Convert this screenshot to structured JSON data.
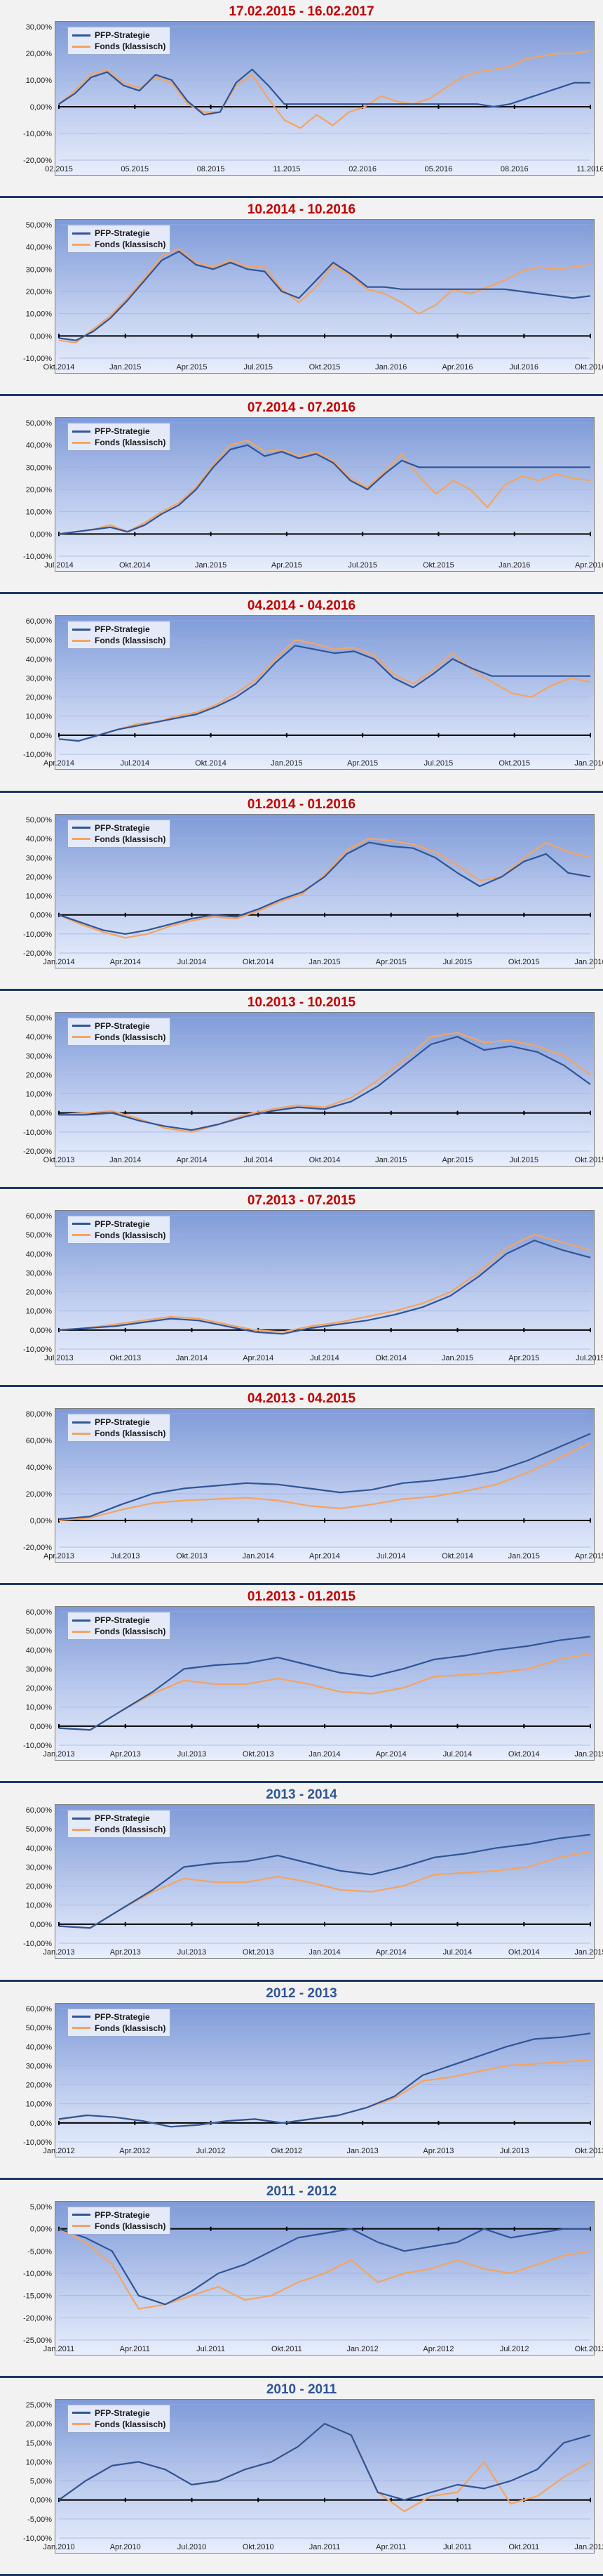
{
  "colors": {
    "strategy": "#2f5597",
    "fund": "#f4a460",
    "title_red": "#c00000",
    "title_blue": "#2f5597"
  },
  "legend": {
    "strategy": "PFP-Strategie",
    "fund": "Fonds (klassisch)"
  },
  "chart_data": [
    {
      "type": "line",
      "title": "17.02.2015 - 16.02.2017",
      "title_color": "red",
      "ylim": [
        -20,
        30
      ],
      "yticks": [
        "-20,00%",
        "-10,00%",
        "0,00%",
        "10,00%",
        "20,00%",
        "30,00%"
      ],
      "xticks": [
        "02.2015",
        "05.2015",
        "08.2015",
        "11.2015",
        "02.2016",
        "05.2016",
        "08.2016",
        "11.2016"
      ],
      "series": [
        {
          "name": "PFP-Strategie",
          "values": [
            1,
            5,
            11,
            13,
            8,
            6,
            12,
            10,
            2,
            -3,
            -2,
            9,
            14,
            8,
            1,
            1,
            1,
            1,
            1,
            1,
            1,
            1,
            1,
            1,
            1,
            1,
            1,
            0,
            1,
            3,
            5,
            7,
            9,
            9
          ]
        },
        {
          "name": "Fonds (klassisch)",
          "values": [
            1,
            6,
            12,
            14,
            9,
            7,
            11,
            9,
            1,
            -2,
            -2,
            8,
            12,
            3,
            -5,
            -8,
            -3,
            -7,
            -2,
            0,
            4,
            2,
            1,
            3,
            7,
            11,
            13,
            14,
            15,
            18,
            19,
            20,
            20,
            21
          ]
        }
      ]
    },
    {
      "type": "line",
      "title": "10.2014 - 10.2016",
      "title_color": "red",
      "ylim": [
        -10,
        50
      ],
      "yticks": [
        "-10,00%",
        "0,00%",
        "10,00%",
        "20,00%",
        "30,00%",
        "40,00%",
        "50,00%"
      ],
      "xticks": [
        "Okt.2014",
        "Jan.2015",
        "Apr.2015",
        "Jul.2015",
        "Okt.2015",
        "Jan.2016",
        "Apr.2016",
        "Jul.2016",
        "Okt.2016"
      ],
      "series": [
        {
          "name": "PFP-Strategie",
          "values": [
            -1,
            -2,
            2,
            8,
            16,
            25,
            34,
            38,
            32,
            30,
            33,
            30,
            29,
            20,
            17,
            25,
            33,
            28,
            22,
            22,
            21,
            21,
            21,
            21,
            21,
            21,
            21,
            20,
            19,
            18,
            17,
            18
          ]
        },
        {
          "name": "Fonds (klassisch)",
          "values": [
            -2,
            -3,
            3,
            9,
            17,
            26,
            36,
            39,
            33,
            31,
            34,
            31,
            31,
            21,
            15,
            22,
            32,
            27,
            21,
            19,
            15,
            10,
            14,
            21,
            19,
            22,
            25,
            29,
            31,
            30,
            31,
            32
          ]
        }
      ]
    },
    {
      "type": "line",
      "title": "07.2014 - 07.2016",
      "title_color": "red",
      "ylim": [
        -10,
        50
      ],
      "yticks": [
        "-10,00%",
        "0,00%",
        "10,00%",
        "20,00%",
        "30,00%",
        "40,00%",
        "50,00%"
      ],
      "xticks": [
        "Jul.2014",
        "Okt.2014",
        "Jan.2015",
        "Apr.2015",
        "Jul.2015",
        "Okt.2015",
        "Jan.2016",
        "Apr.2016"
      ],
      "series": [
        {
          "name": "PFP-Strategie",
          "values": [
            0,
            1,
            2,
            3,
            1,
            4,
            9,
            13,
            20,
            30,
            38,
            40,
            35,
            37,
            34,
            36,
            32,
            24,
            20,
            27,
            33,
            30,
            30,
            30,
            30,
            30,
            30,
            30,
            30,
            30,
            30,
            30
          ]
        },
        {
          "name": "Fonds (klassisch)",
          "values": [
            0,
            1,
            2,
            4,
            1,
            5,
            10,
            14,
            21,
            31,
            40,
            42,
            37,
            38,
            35,
            37,
            33,
            25,
            21,
            28,
            36,
            26,
            18,
            24,
            20,
            12,
            22,
            26,
            24,
            27,
            25,
            24
          ]
        }
      ]
    },
    {
      "type": "line",
      "title": "04.2014 - 04.2016",
      "title_color": "red",
      "ylim": [
        -10,
        60
      ],
      "yticks": [
        "-10,00%",
        "0,00%",
        "10,00%",
        "20,00%",
        "30,00%",
        "40,00%",
        "50,00%",
        "60,00%"
      ],
      "xticks": [
        "Apr.2014",
        "Jul.2014",
        "Okt.2014",
        "Jan.2015",
        "Apr.2015",
        "Jul.2015",
        "Okt.2015",
        "Jan.2016"
      ],
      "series": [
        {
          "name": "PFP-Strategie",
          "values": [
            -2,
            -3,
            0,
            3,
            5,
            7,
            9,
            11,
            15,
            20,
            27,
            38,
            47,
            45,
            43,
            44,
            40,
            30,
            25,
            32,
            40,
            35,
            31,
            31,
            31,
            31,
            31,
            31
          ]
        },
        {
          "name": "Fonds (klassisch)",
          "values": [
            -2,
            -3,
            0,
            3,
            6,
            7,
            10,
            12,
            16,
            22,
            29,
            40,
            50,
            48,
            45,
            46,
            42,
            32,
            27,
            34,
            43,
            34,
            28,
            22,
            20,
            26,
            30,
            28
          ]
        }
      ]
    },
    {
      "type": "line",
      "title": "01.2014 - 01.2016",
      "title_color": "red",
      "ylim": [
        -20,
        50
      ],
      "yticks": [
        "-20,00%",
        "-10,00%",
        "0,00%",
        "10,00%",
        "20,00%",
        "30,00%",
        "40,00%",
        "50,00%"
      ],
      "xticks": [
        "Jan.2014",
        "Apr.2014",
        "Jul.2014",
        "Okt.2014",
        "Jan.2015",
        "Apr.2015",
        "Jul.2015",
        "Okt.2015",
        "Jan.2016"
      ],
      "series": [
        {
          "name": "PFP-Strategie",
          "values": [
            0,
            -4,
            -8,
            -10,
            -8,
            -5,
            -2,
            0,
            -1,
            3,
            8,
            12,
            20,
            32,
            38,
            36,
            35,
            30,
            22,
            15,
            20,
            28,
            32,
            22,
            20
          ]
        },
        {
          "name": "Fonds (klassisch)",
          "values": [
            0,
            -5,
            -9,
            -12,
            -10,
            -6,
            -3,
            -1,
            -2,
            2,
            7,
            11,
            21,
            34,
            40,
            39,
            37,
            33,
            26,
            18,
            20,
            30,
            38,
            33,
            30
          ]
        }
      ]
    },
    {
      "type": "line",
      "title": "10.2013 - 10.2015",
      "title_color": "red",
      "ylim": [
        -20,
        50
      ],
      "yticks": [
        "-20,00%",
        "-10,00%",
        "0,00%",
        "10,00%",
        "20,00%",
        "30,00%",
        "40,00%",
        "50,00%"
      ],
      "xticks": [
        "Okt.2013",
        "Jan.2014",
        "Apr.2014",
        "Jul.2014",
        "Okt.2014",
        "Jan.2015",
        "Apr.2015",
        "Jul.2015",
        "Okt.2015"
      ],
      "series": [
        {
          "name": "PFP-Strategie",
          "values": [
            -1,
            -1,
            0,
            -4,
            -7,
            -9,
            -6,
            -2,
            1,
            3,
            2,
            6,
            14,
            25,
            36,
            40,
            33,
            35,
            32,
            25,
            15
          ]
        },
        {
          "name": "Fonds (klassisch)",
          "values": [
            -1,
            0,
            1,
            -3,
            -8,
            -10,
            -6,
            -1,
            2,
            4,
            3,
            8,
            17,
            28,
            40,
            42,
            37,
            38,
            35,
            30,
            20
          ]
        }
      ]
    },
    {
      "type": "line",
      "title": "07.2013 - 07.2015",
      "title_color": "red",
      "ylim": [
        -10,
        60
      ],
      "yticks": [
        "-10,00%",
        "0,00%",
        "10,00%",
        "20,00%",
        "30,00%",
        "40,00%",
        "50,00%",
        "60,00%"
      ],
      "xticks": [
        "Jul.2013",
        "Okt.2013",
        "Jan.2014",
        "Apr.2014",
        "Jul.2014",
        "Okt.2014",
        "Jan.2015",
        "Apr.2015",
        "Jul.2015"
      ],
      "series": [
        {
          "name": "PFP-Strategie",
          "values": [
            0,
            1,
            2,
            4,
            6,
            5,
            2,
            -1,
            -2,
            1,
            3,
            5,
            8,
            12,
            18,
            28,
            40,
            47,
            42,
            38
          ]
        },
        {
          "name": "Fonds (klassisch)",
          "values": [
            0,
            1,
            3,
            5,
            7,
            6,
            3,
            0,
            -1,
            2,
            4,
            7,
            10,
            14,
            20,
            30,
            43,
            50,
            46,
            42
          ]
        }
      ]
    },
    {
      "type": "line",
      "title": "04.2013 - 04.2015",
      "title_color": "red",
      "ylim": [
        -20,
        80
      ],
      "yticks": [
        "-20,00%",
        "0,00%",
        "20,00%",
        "40,00%",
        "60,00%",
        "80,00%"
      ],
      "xticks": [
        "Apr.2013",
        "Jul.2013",
        "Okt.2013",
        "Jan.2014",
        "Apr.2014",
        "Jul.2014",
        "Okt.2014",
        "Jan.2015",
        "Apr.2015"
      ],
      "series": [
        {
          "name": "PFP-Strategie",
          "values": [
            1,
            3,
            12,
            20,
            24,
            26,
            28,
            27,
            24,
            21,
            23,
            28,
            30,
            33,
            37,
            45,
            55,
            65
          ]
        },
        {
          "name": "Fonds (klassisch)",
          "values": [
            0,
            2,
            8,
            13,
            15,
            16,
            17,
            15,
            11,
            9,
            12,
            16,
            18,
            22,
            27,
            36,
            47,
            58
          ]
        }
      ]
    },
    {
      "type": "line",
      "title": "01.2013 - 01.2015",
      "title_color": "red",
      "ylim": [
        -10,
        60
      ],
      "yticks": [
        "-10,00%",
        "0,00%",
        "10,00%",
        "20,00%",
        "30,00%",
        "40,00%",
        "50,00%",
        "60,00%"
      ],
      "xticks": [
        "Jan.2013",
        "Apr.2013",
        "Jul.2013",
        "Okt.2013",
        "Jan.2014",
        "Apr.2014",
        "Jul.2014",
        "Okt.2014",
        "Jan.2015"
      ],
      "series": [
        {
          "name": "PFP-Strategie",
          "values": [
            -1,
            -2,
            8,
            18,
            30,
            32,
            33,
            36,
            32,
            28,
            26,
            30,
            35,
            37,
            40,
            42,
            45,
            47
          ]
        },
        {
          "name": "Fonds (klassisch)",
          "values": [
            -1,
            -2,
            8,
            17,
            24,
            22,
            22,
            25,
            22,
            18,
            17,
            20,
            26,
            27,
            28,
            30,
            35,
            38
          ]
        }
      ]
    },
    {
      "type": "line",
      "title": "2013 - 2014",
      "title_color": "blue",
      "ylim": [
        -10,
        60
      ],
      "yticks": [
        "-10,00%",
        "0,00%",
        "10,00%",
        "20,00%",
        "30,00%",
        "40,00%",
        "50,00%",
        "60,00%"
      ],
      "xticks": [
        "Jan.2013",
        "Apr.2013",
        "Jul.2013",
        "Okt.2013",
        "Jan.2014",
        "Apr.2014",
        "Jul.2014",
        "Okt.2014",
        "Jan.2015"
      ],
      "series": [
        {
          "name": "PFP-Strategie",
          "values": [
            -1,
            -2,
            8,
            18,
            30,
            32,
            33,
            36,
            32,
            28,
            26,
            30,
            35,
            37,
            40,
            42,
            45,
            47
          ]
        },
        {
          "name": "Fonds (klassisch)",
          "values": [
            -1,
            -2,
            8,
            17,
            24,
            22,
            22,
            25,
            22,
            18,
            17,
            20,
            26,
            27,
            28,
            30,
            35,
            38
          ]
        }
      ]
    },
    {
      "type": "line",
      "title": "2012 - 2013",
      "title_color": "blue",
      "ylim": [
        -10,
        60
      ],
      "yticks": [
        "-10,00%",
        "0,00%",
        "10,00%",
        "20,00%",
        "30,00%",
        "40,00%",
        "50,00%",
        "60,00%"
      ],
      "xticks": [
        "Jan.2012",
        "Apr.2012",
        "Jul.2012",
        "Okt.2012",
        "Jan.2013",
        "Apr.2013",
        "Jul.2013",
        "Okt.2013"
      ],
      "series": [
        {
          "name": "PFP-Strategie",
          "values": [
            2,
            4,
            3,
            1,
            -2,
            -1,
            1,
            2,
            0,
            2,
            4,
            8,
            14,
            25,
            30,
            35,
            40,
            44,
            45,
            47
          ]
        },
        {
          "name": "Fonds (klassisch)",
          "values": [
            2,
            4,
            3,
            1,
            -2,
            -1,
            1,
            2,
            0,
            2,
            4,
            8,
            13,
            22,
            24,
            27,
            30,
            31,
            32,
            33
          ]
        }
      ]
    },
    {
      "type": "line",
      "title": "2011 - 2012",
      "title_color": "blue",
      "ylim": [
        -25,
        5
      ],
      "yticks": [
        "-25,00%",
        "-20,00%",
        "-15,00%",
        "-10,00%",
        "-5,00%",
        "0,00%",
        "5,00%"
      ],
      "xticks": [
        "Jan.2011",
        "Apr.2011",
        "Jul.2011",
        "Okt.2011",
        "Jan.2012",
        "Apr.2012",
        "Jul.2012",
        "Okt.2012"
      ],
      "series": [
        {
          "name": "PFP-Strategie",
          "values": [
            0,
            -2,
            -5,
            -15,
            -17,
            -14,
            -10,
            -8,
            -5,
            -2,
            -1,
            0,
            -3,
            -5,
            -4,
            -3,
            0,
            -2,
            -1,
            0,
            0
          ]
        },
        {
          "name": "Fonds (klassisch)",
          "values": [
            0,
            -3,
            -8,
            -18,
            -17,
            -15,
            -13,
            -16,
            -15,
            -12,
            -10,
            -7,
            -12,
            -10,
            -9,
            -7,
            -9,
            -10,
            -8,
            -6,
            -5
          ]
        }
      ]
    },
    {
      "type": "line",
      "title": "2010 - 2011",
      "title_color": "blue",
      "ylim": [
        -10,
        25
      ],
      "yticks": [
        "-10,00%",
        "-5,00%",
        "0,00%",
        "5,00%",
        "10,00%",
        "15,00%",
        "20,00%",
        "25,00%"
      ],
      "xticks": [
        "Jan.2010",
        "Apr.2010",
        "Jul.2010",
        "Okt.2010",
        "Jan.2011",
        "Apr.2011",
        "Jul.2011",
        "Okt.2011",
        "Jan.2012"
      ],
      "series": [
        {
          "name": "PFP-Strategie",
          "values": [
            0,
            5,
            9,
            10,
            8,
            4,
            5,
            8,
            10,
            14,
            20,
            17,
            2,
            0,
            2,
            4,
            3,
            5,
            8,
            15,
            17
          ]
        },
        {
          "name": "Fonds (klassisch)",
          "values": [
            0,
            5,
            9,
            10,
            8,
            4,
            5,
            8,
            10,
            14,
            20,
            17,
            2,
            -3,
            1,
            2,
            10,
            -1,
            1,
            6,
            10
          ]
        }
      ]
    }
  ]
}
